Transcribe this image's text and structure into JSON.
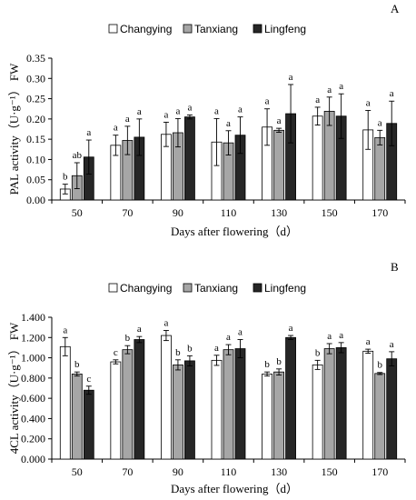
{
  "chart_data": [
    {
      "type": "bar",
      "panel_label": "A",
      "categories": [
        "50",
        "70",
        "90",
        "110",
        "130",
        "150",
        "170"
      ],
      "xlabel": "Days after flowering（d）",
      "ylabel": "PAL activity（U·g⁻¹） FW",
      "ylim": [
        0,
        0.35
      ],
      "yticks": [
        "0.00",
        "0.05",
        "0.10",
        "0.15",
        "0.20",
        "0.25",
        "0.30",
        "0.35"
      ],
      "legend": "top",
      "grid": false,
      "series": [
        {
          "name": "Changying",
          "color": "#ffffff",
          "values": [
            0.027,
            0.135,
            0.162,
            0.143,
            0.18,
            0.207,
            0.173
          ],
          "errors": [
            0.012,
            0.025,
            0.03,
            0.058,
            0.045,
            0.022,
            0.048
          ],
          "letters": [
            "b",
            "a",
            "a",
            "a",
            "a",
            "a",
            "a"
          ]
        },
        {
          "name": "Tanxiang",
          "color": "#a6a6a6",
          "values": [
            0.06,
            0.147,
            0.166,
            0.141,
            0.172,
            0.219,
            0.154
          ],
          "errors": [
            0.032,
            0.035,
            0.035,
            0.03,
            0.005,
            0.035,
            0.018
          ],
          "letters": [
            "ab",
            "a",
            "a",
            "a",
            "a",
            "a",
            "a"
          ]
        },
        {
          "name": "Lingfeng",
          "color": "#262626",
          "values": [
            0.106,
            0.155,
            0.205,
            0.16,
            0.213,
            0.207,
            0.189
          ],
          "errors": [
            0.042,
            0.045,
            0.005,
            0.045,
            0.072,
            0.055,
            0.055
          ],
          "letters": [
            "a",
            "a",
            "a",
            "a",
            "a",
            "a",
            "a"
          ]
        }
      ]
    },
    {
      "type": "bar",
      "panel_label": "B",
      "categories": [
        "50",
        "70",
        "90",
        "110",
        "130",
        "150",
        "170"
      ],
      "xlabel": "Days after flowering（d）",
      "ylabel": "4CL activity（U·g⁻¹） FW",
      "ylim": [
        0,
        1.4
      ],
      "yticks": [
        "0.000",
        "0.200",
        "0.400",
        "0.600",
        "0.800",
        "1.000",
        "1.200",
        "1.400"
      ],
      "legend": "top",
      "grid": false,
      "series": [
        {
          "name": "Changying",
          "color": "#ffffff",
          "values": [
            1.11,
            0.96,
            1.22,
            0.975,
            0.84,
            0.93,
            1.065
          ],
          "errors": [
            0.09,
            0.02,
            0.05,
            0.05,
            0.02,
            0.045,
            0.02
          ],
          "letters": [
            "a",
            "c",
            "a",
            "a",
            "b",
            "b",
            "a"
          ]
        },
        {
          "name": "Tanxiang",
          "color": "#a6a6a6",
          "values": [
            0.84,
            1.08,
            0.93,
            1.08,
            0.86,
            1.09,
            0.845
          ],
          "errors": [
            0.02,
            0.04,
            0.05,
            0.05,
            0.03,
            0.05,
            0.01
          ],
          "letters": [
            "b",
            "b",
            "b",
            "a",
            "b",
            "a",
            "b"
          ]
        },
        {
          "name": "Lingfeng",
          "color": "#262626",
          "values": [
            0.68,
            1.18,
            0.97,
            1.09,
            1.2,
            1.1,
            0.99
          ],
          "errors": [
            0.04,
            0.03,
            0.05,
            0.09,
            0.02,
            0.05,
            0.07
          ],
          "letters": [
            "c",
            "a",
            "b",
            "a",
            "a",
            "a",
            "a"
          ]
        }
      ]
    }
  ]
}
